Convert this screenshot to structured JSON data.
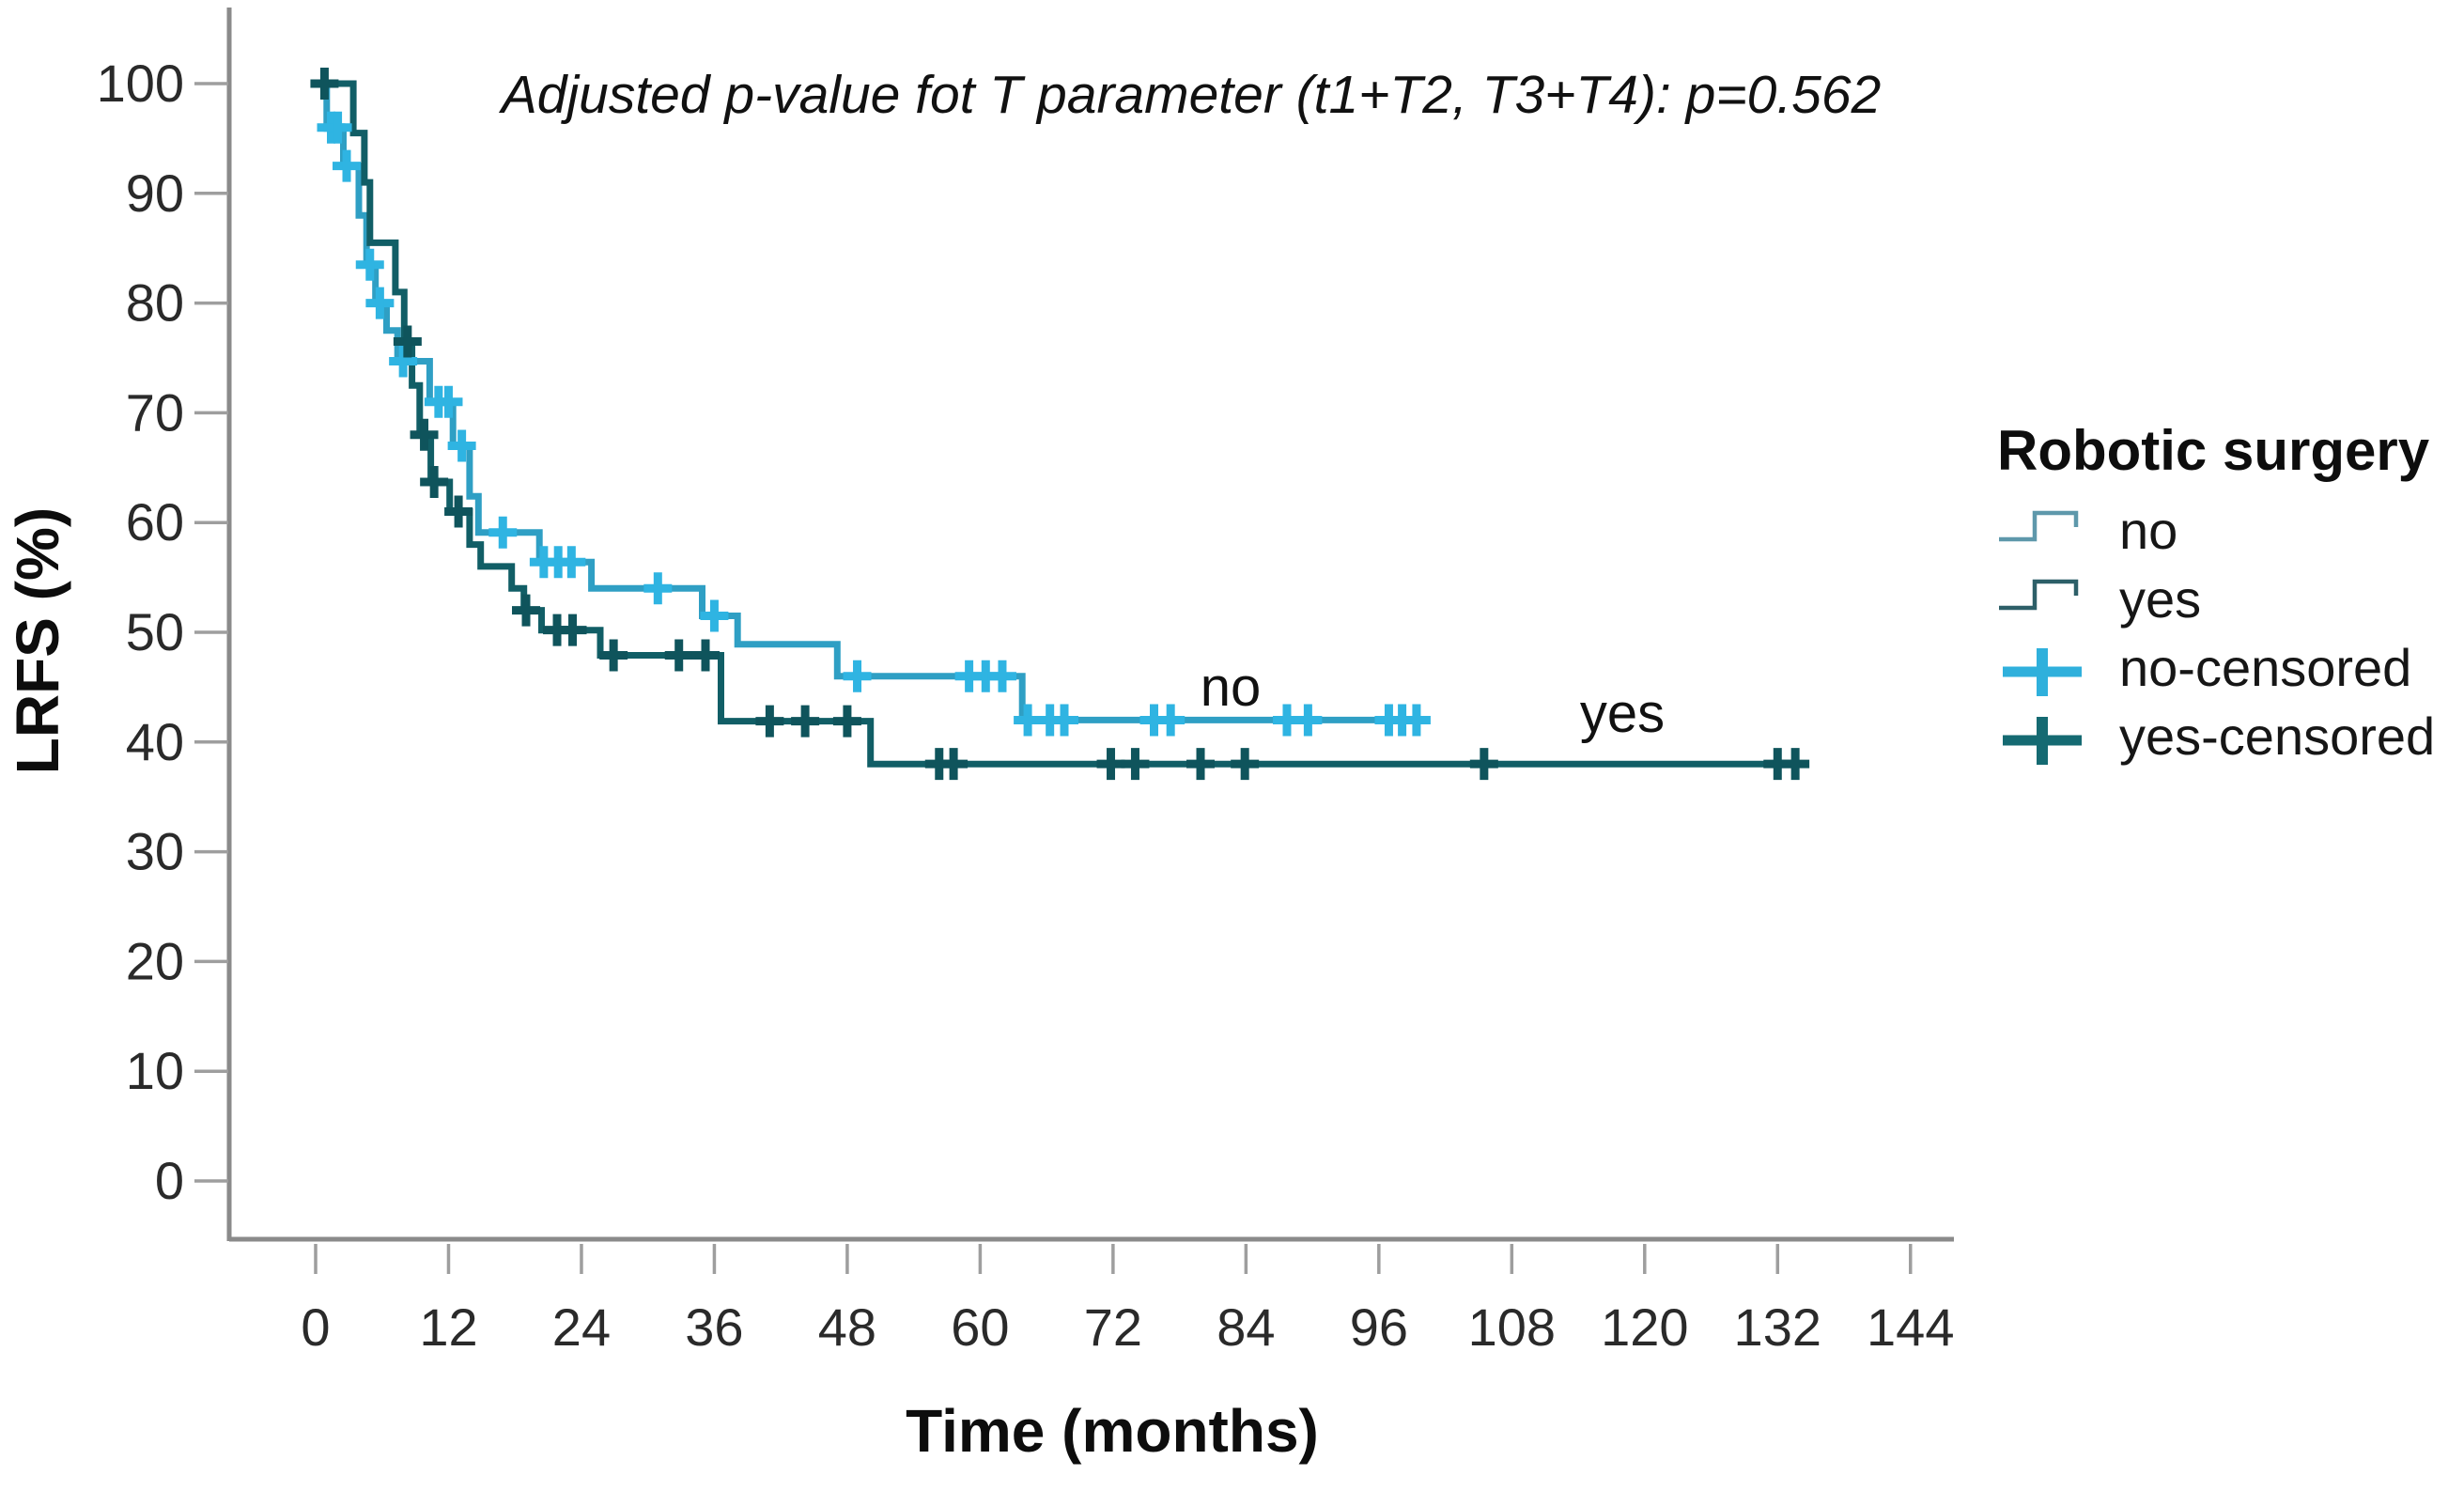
{
  "title": "Adjusted p-value fot T parameter (t1+T2, T3+T4):  p=0.562",
  "axes": {
    "y_label": "LRFS (%)",
    "x_label": "Time (months)"
  },
  "annotations": {
    "no_label": "no",
    "yes_label": "yes"
  },
  "legend": {
    "title": "Robotic surgery",
    "items": [
      {
        "label": "no",
        "symbol": "step",
        "color": "#5e98ab"
      },
      {
        "label": "yes",
        "symbol": "step",
        "color": "#2d5f68"
      },
      {
        "label": "no-censored",
        "symbol": "plus",
        "color": "#2fb0dc"
      },
      {
        "label": "yes-censored",
        "symbol": "plus",
        "color": "#156a72"
      }
    ]
  },
  "colors": {
    "no_line": "#2f9fc4",
    "no_censor": "#2fb4e2",
    "yes_line": "#115e66",
    "yes_censor": "#0f545c",
    "axis": "#8a8a8a",
    "text": "#1c1c1c"
  },
  "chart_data": {
    "type": "line",
    "subtype": "kaplan-meier-step",
    "title": "Adjusted p-value fot T parameter (t1+T2, T3+T4):  p=0.562",
    "xlabel": "Time (months)",
    "ylabel": "LRFS (%)",
    "xlim": [
      0,
      144
    ],
    "ylim": [
      0,
      100
    ],
    "xticks": [
      0,
      12,
      24,
      36,
      48,
      60,
      72,
      84,
      96,
      108,
      120,
      132,
      144
    ],
    "yticks": [
      0,
      10,
      20,
      30,
      40,
      50,
      60,
      70,
      80,
      90,
      100
    ],
    "grid": false,
    "legend_position": "right",
    "series": [
      {
        "name": "no",
        "color": "#2f9fc4",
        "censor_color": "#2fb4e2",
        "steps": [
          [
            0,
            100
          ],
          [
            1.0,
            96
          ],
          [
            2.5,
            92.5
          ],
          [
            3.9,
            88
          ],
          [
            4.6,
            83.5
          ],
          [
            5.4,
            80
          ],
          [
            6.4,
            77.5
          ],
          [
            7.4,
            74.7
          ],
          [
            10.3,
            71
          ],
          [
            12.4,
            67
          ],
          [
            13.9,
            62.4
          ],
          [
            14.7,
            59.1
          ],
          [
            20.2,
            56.4
          ],
          [
            24.9,
            54
          ],
          [
            34.9,
            51.5
          ],
          [
            38.1,
            48.9
          ],
          [
            47.1,
            46
          ],
          [
            63.8,
            42
          ]
        ],
        "end_time": 100.3,
        "censor_times": [
          1.4,
          2.0,
          2.8,
          4.9,
          5.8,
          7.9,
          11.1,
          12.0,
          13.2,
          16.9,
          20.6,
          21.9,
          23.1,
          30.9,
          36.0,
          48.9,
          59.0,
          60.5,
          62.0,
          64.3,
          66.3,
          67.6,
          75.7,
          77.2,
          87.7,
          89.6,
          96.9,
          98.1,
          99.4
        ]
      },
      {
        "name": "yes",
        "color": "#115e66",
        "censor_color": "#0f545c",
        "steps": [
          [
            0,
            100
          ],
          [
            3.4,
            95.5
          ],
          [
            4.4,
            91
          ],
          [
            4.9,
            85.5
          ],
          [
            7.2,
            81
          ],
          [
            8.0,
            76.5
          ],
          [
            8.7,
            72.5
          ],
          [
            9.4,
            68
          ],
          [
            10.4,
            63.7
          ],
          [
            12.1,
            61
          ],
          [
            13.9,
            58
          ],
          [
            14.9,
            56
          ],
          [
            17.7,
            54
          ],
          [
            18.8,
            52
          ],
          [
            20.4,
            50.2
          ],
          [
            25.7,
            47.9
          ],
          [
            36.6,
            41.9
          ],
          [
            50.1,
            38
          ]
        ],
        "end_time": 134.6,
        "censor_times": [
          0.8,
          8.3,
          9.8,
          10.7,
          12.9,
          19.0,
          21.8,
          23.2,
          26.9,
          32.8,
          35.2,
          41.0,
          44.2,
          48.0,
          56.3,
          57.6,
          71.8,
          74.0,
          79.9,
          83.9,
          105.5,
          132.0,
          133.6
        ]
      }
    ]
  }
}
